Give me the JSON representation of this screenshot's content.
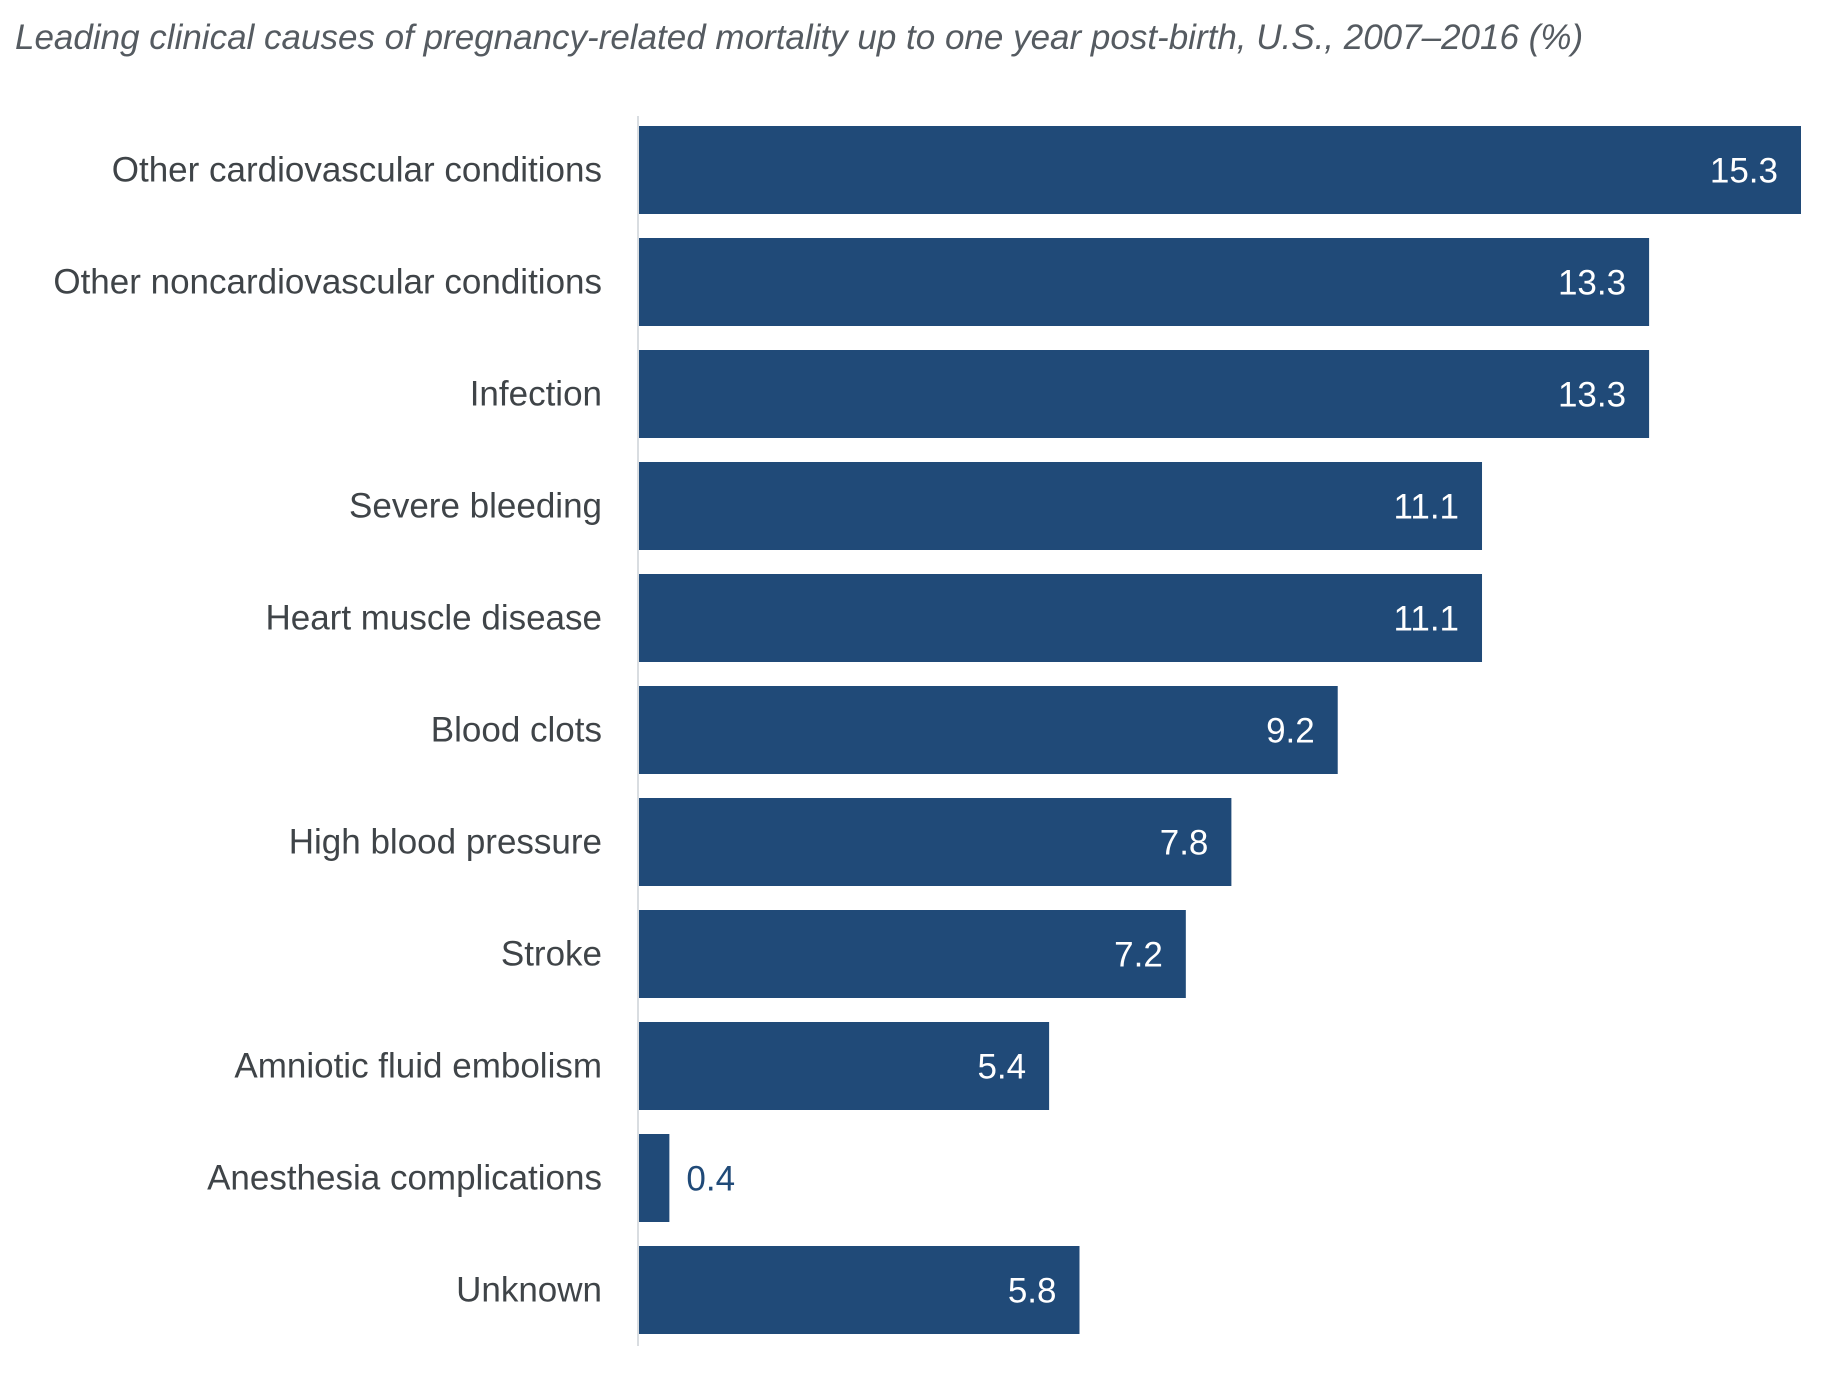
{
  "chart_data": {
    "type": "bar",
    "orientation": "horizontal",
    "title": "Leading clinical causes of pregnancy-related mortality up to one year post-birth, U.S., 2007–2016 (%)",
    "xlabel": "",
    "ylabel": "",
    "categories": [
      "Other cardiovascular conditions",
      "Other noncardiovascular conditions",
      "Infection",
      "Severe bleeding",
      "Heart muscle disease",
      "Blood clots",
      "High blood pressure",
      "Stroke",
      "Amniotic fluid embolism",
      "Anesthesia complications",
      "Unknown"
    ],
    "values": [
      15.3,
      13.3,
      13.3,
      11.1,
      11.1,
      9.2,
      7.8,
      7.2,
      5.4,
      0.4,
      5.8
    ],
    "xlim": [
      0,
      15.3
    ],
    "grid": false,
    "legend": "none",
    "data_labels": true,
    "colors": {
      "bar": "#204a78",
      "label_inside": "#ffffff",
      "label_outside": "#204a78",
      "axis_line": "#d9dde1",
      "category_text": "#3f4448",
      "title_text": "#555b61"
    }
  }
}
